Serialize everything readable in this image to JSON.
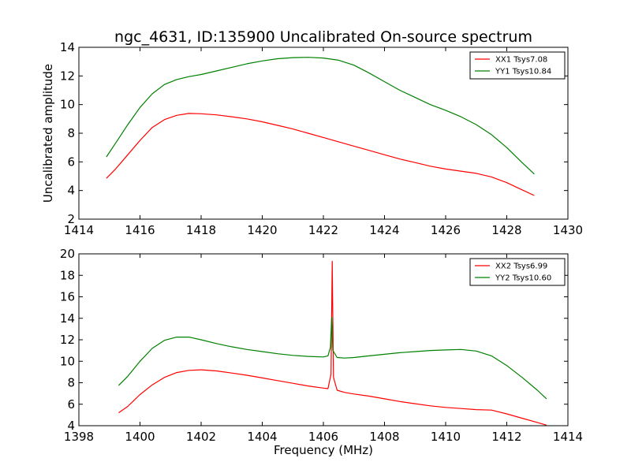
{
  "chart_data": [
    {
      "type": "line",
      "title": "ngc_4631, ID:135900 Uncalibrated On-source spectrum",
      "xlabel": "",
      "ylabel": "Uncalibrated amplitude",
      "xlim": [
        1414,
        1430
      ],
      "ylim": [
        2,
        14
      ],
      "xticks": [
        1414,
        1416,
        1418,
        1420,
        1422,
        1424,
        1426,
        1428,
        1430
      ],
      "yticks": [
        2,
        4,
        6,
        8,
        10,
        12,
        14
      ],
      "grid": false,
      "legend_position": "top-right",
      "series": [
        {
          "name": "XX1 Tsys7.08",
          "color": "#ff0000",
          "x": [
            1414.9,
            1415.2,
            1415.6,
            1416.0,
            1416.4,
            1416.8,
            1417.2,
            1417.6,
            1418.0,
            1418.5,
            1419.0,
            1419.5,
            1420.0,
            1420.5,
            1421.0,
            1421.5,
            1422.0,
            1422.5,
            1423.0,
            1423.5,
            1424.0,
            1424.5,
            1425.0,
            1425.5,
            1426.0,
            1426.5,
            1427.0,
            1427.5,
            1428.0,
            1428.5,
            1428.9
          ],
          "y": [
            4.85,
            5.5,
            6.5,
            7.5,
            8.4,
            8.95,
            9.25,
            9.38,
            9.36,
            9.28,
            9.15,
            9.0,
            8.8,
            8.55,
            8.3,
            8.0,
            7.7,
            7.4,
            7.1,
            6.8,
            6.5,
            6.2,
            5.95,
            5.7,
            5.5,
            5.35,
            5.2,
            4.95,
            4.55,
            4.05,
            3.65
          ]
        },
        {
          "name": "YY1 Tsys10.84",
          "color": "#008000",
          "x": [
            1414.9,
            1415.2,
            1415.6,
            1416.0,
            1416.4,
            1416.8,
            1417.2,
            1417.6,
            1418.0,
            1418.5,
            1419.0,
            1419.5,
            1420.0,
            1420.5,
            1421.0,
            1421.5,
            1422.0,
            1422.5,
            1423.0,
            1423.5,
            1424.0,
            1424.5,
            1425.0,
            1425.5,
            1426.0,
            1426.5,
            1427.0,
            1427.5,
            1428.0,
            1428.5,
            1428.9
          ],
          "y": [
            6.35,
            7.3,
            8.6,
            9.8,
            10.75,
            11.4,
            11.75,
            11.95,
            12.1,
            12.35,
            12.6,
            12.85,
            13.05,
            13.2,
            13.28,
            13.3,
            13.25,
            13.1,
            12.75,
            12.2,
            11.6,
            11.0,
            10.5,
            10.0,
            9.6,
            9.15,
            8.6,
            7.9,
            7.0,
            5.95,
            5.15
          ]
        }
      ]
    },
    {
      "type": "line",
      "title": "",
      "xlabel": "Frequency (MHz)",
      "ylabel": "",
      "xlim": [
        1398,
        1414
      ],
      "ylim": [
        4,
        20
      ],
      "xticks": [
        1398,
        1400,
        1402,
        1404,
        1406,
        1408,
        1410,
        1412,
        1414
      ],
      "yticks": [
        4,
        6,
        8,
        10,
        12,
        14,
        16,
        18,
        20
      ],
      "grid": false,
      "legend_position": "top-right",
      "series": [
        {
          "name": "XX2 Tsys6.99",
          "color": "#ff0000",
          "x": [
            1399.3,
            1399.6,
            1400.0,
            1400.4,
            1400.8,
            1401.2,
            1401.6,
            1402.0,
            1402.5,
            1403.0,
            1403.5,
            1404.0,
            1404.5,
            1405.0,
            1405.5,
            1406.0,
            1406.15,
            1406.25,
            1406.29,
            1406.33,
            1406.45,
            1406.7,
            1407.0,
            1407.5,
            1408.0,
            1408.5,
            1409.0,
            1409.5,
            1410.0,
            1410.5,
            1411.0,
            1411.5,
            1412.0,
            1412.5,
            1413.0,
            1413.3
          ],
          "y": [
            5.2,
            5.8,
            6.9,
            7.8,
            8.5,
            8.95,
            9.15,
            9.2,
            9.1,
            8.9,
            8.7,
            8.45,
            8.2,
            7.95,
            7.7,
            7.5,
            7.45,
            8.8,
            19.3,
            8.5,
            7.3,
            7.1,
            6.95,
            6.75,
            6.5,
            6.25,
            6.05,
            5.85,
            5.7,
            5.6,
            5.5,
            5.45,
            5.1,
            4.7,
            4.3,
            4.05
          ]
        },
        {
          "name": "YY2 Tsys10.60",
          "color": "#008000",
          "x": [
            1399.3,
            1399.6,
            1400.0,
            1400.4,
            1400.8,
            1401.2,
            1401.6,
            1402.0,
            1402.5,
            1403.0,
            1403.5,
            1404.0,
            1404.5,
            1405.0,
            1405.5,
            1406.0,
            1406.15,
            1406.23,
            1406.27,
            1406.31,
            1406.45,
            1406.7,
            1407.0,
            1407.5,
            1408.0,
            1408.5,
            1409.0,
            1409.5,
            1410.0,
            1410.5,
            1411.0,
            1411.5,
            1412.0,
            1412.5,
            1413.0,
            1413.3
          ],
          "y": [
            7.75,
            8.6,
            10.0,
            11.2,
            11.95,
            12.25,
            12.25,
            12.0,
            11.65,
            11.35,
            11.1,
            10.9,
            10.7,
            10.55,
            10.45,
            10.4,
            10.5,
            11.3,
            14.1,
            11.0,
            10.35,
            10.3,
            10.35,
            10.5,
            10.65,
            10.8,
            10.9,
            11.0,
            11.05,
            11.1,
            10.95,
            10.5,
            9.6,
            8.5,
            7.3,
            6.5
          ]
        }
      ]
    }
  ]
}
